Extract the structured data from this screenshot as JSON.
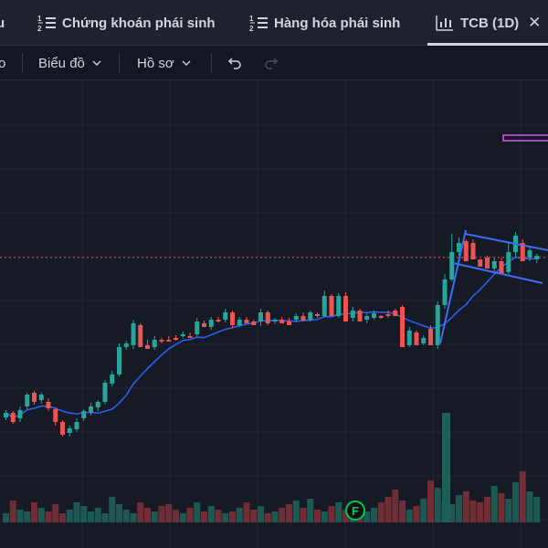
{
  "tabs": [
    {
      "label": "u",
      "icon": "none"
    },
    {
      "label": "Chứng khoán phái sinh",
      "icon": "list-numbered-icon"
    },
    {
      "label": "Hàng hóa phái sinh",
      "icon": "list-numbered-icon"
    },
    {
      "label": "TCB (1D)",
      "icon": "chart-icon",
      "active": true
    }
  ],
  "toolbar": {
    "partial_label": "o",
    "chart_menu": "Biểu đồ",
    "profile_menu": "Hồ sơ"
  },
  "chart_marker": {
    "label": "F"
  },
  "colors": {
    "up": "#26a69a",
    "down": "#ef5350",
    "ma": "#2962ff",
    "trendline": "#3d6df2",
    "price_line": "#ef5350",
    "marker": "#00c853",
    "box": "#ab47bc"
  },
  "chart_data": {
    "type": "candlestick",
    "candles": [
      [
        457,
        452,
        460,
        449
      ],
      [
        452,
        462,
        464,
        450
      ],
      [
        458,
        449,
        462,
        445
      ],
      [
        445,
        432,
        448,
        430
      ],
      [
        430,
        440,
        443,
        428
      ],
      [
        438,
        432,
        442,
        430
      ],
      [
        440,
        447,
        450,
        436
      ],
      [
        448,
        462,
        466,
        446
      ],
      [
        462,
        476,
        478,
        460
      ],
      [
        474,
        469,
        478,
        466
      ],
      [
        470,
        462,
        473,
        458
      ],
      [
        458,
        450,
        461,
        448
      ],
      [
        452,
        445,
        455,
        441
      ],
      [
        446,
        440,
        450,
        438
      ],
      [
        440,
        419,
        443,
        416
      ],
      [
        420,
        410,
        423,
        406
      ],
      [
        410,
        380,
        412,
        376
      ],
      [
        380,
        376,
        383,
        373
      ],
      [
        378,
        354,
        382,
        350
      ],
      [
        356,
        380,
        360,
        354
      ],
      [
        378,
        382,
        381,
        372
      ],
      [
        380,
        372,
        383,
        368
      ],
      [
        372,
        374,
        376,
        370
      ],
      [
        372,
        372,
        373,
        368
      ],
      [
        370,
        372,
        373,
        367
      ],
      [
        368,
        366,
        370,
        363
      ],
      [
        368,
        368,
        370,
        364
      ],
      [
        366,
        352,
        369,
        348
      ],
      [
        354,
        358,
        357,
        351
      ],
      [
        358,
        350,
        361,
        347
      ],
      [
        350,
        352,
        353,
        347
      ],
      [
        350,
        342,
        353,
        338
      ],
      [
        342,
        356,
        359,
        340
      ],
      [
        356,
        350,
        358,
        347
      ],
      [
        350,
        354,
        353,
        347
      ],
      [
        352,
        356,
        355,
        350
      ],
      [
        352,
        342,
        357,
        338
      ],
      [
        342,
        354,
        356,
        340
      ],
      [
        352,
        350,
        355,
        348
      ],
      [
        350,
        354,
        353,
        347
      ],
      [
        352,
        356,
        355,
        348
      ],
      [
        350,
        346,
        353,
        343
      ],
      [
        346,
        351,
        349,
        342
      ],
      [
        350,
        342,
        352,
        340
      ],
      [
        344,
        346,
        348,
        342
      ],
      [
        346,
        324,
        348,
        318
      ],
      [
        324,
        346,
        328,
        322
      ],
      [
        346,
        324,
        348,
        321
      ],
      [
        324,
        352,
        328,
        320
      ],
      [
        348,
        340,
        352,
        336
      ],
      [
        340,
        352,
        344,
        338
      ],
      [
        350,
        346,
        354,
        343
      ],
      [
        348,
        343,
        350,
        340
      ],
      [
        346,
        347,
        349,
        345
      ],
      [
        344,
        344,
        348,
        340
      ],
      [
        340,
        346,
        344,
        338
      ],
      [
        336,
        380,
        340,
        334
      ],
      [
        378,
        362,
        380,
        358
      ],
      [
        364,
        378,
        368,
        362
      ],
      [
        376,
        370,
        378,
        367
      ],
      [
        360,
        378,
        364,
        356
      ],
      [
        378,
        334,
        382,
        330
      ],
      [
        334,
        306,
        338,
        300
      ],
      [
        306,
        276,
        308,
        256
      ],
      [
        276,
        266,
        280,
        260
      ],
      [
        264,
        286,
        272,
        262
      ],
      [
        266,
        284,
        270,
        262
      ],
      [
        284,
        292,
        288,
        287
      ],
      [
        282,
        294,
        292,
        280
      ],
      [
        294,
        286,
        298,
        283
      ],
      [
        286,
        300,
        296,
        282
      ],
      [
        298,
        276,
        300,
        266
      ],
      [
        276,
        258,
        282,
        254
      ],
      [
        266,
        286,
        270,
        262
      ],
      [
        282,
        274,
        286,
        270
      ],
      [
        284,
        280,
        288,
        278
      ]
    ],
    "moving_average": true,
    "current_price_line": true,
    "volume": true
  }
}
